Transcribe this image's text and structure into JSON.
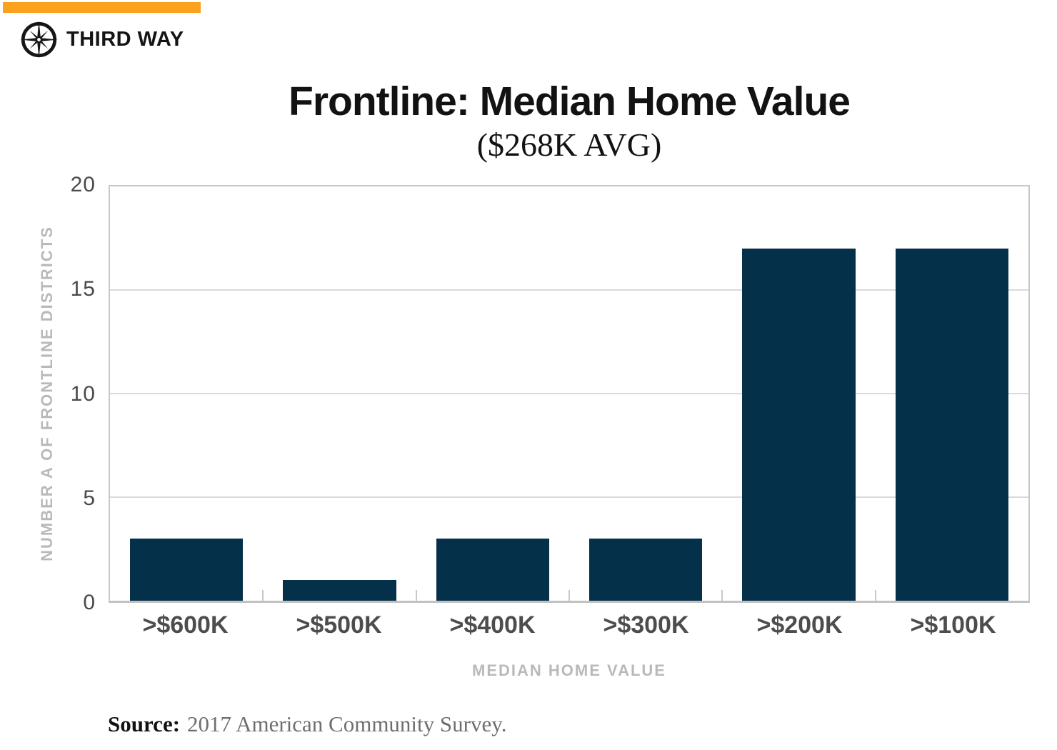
{
  "brand": {
    "name": "THIRD WAY",
    "logo_icon": "compass-icon",
    "accent_color": "#FAA21E",
    "logo_color": "#161616"
  },
  "header": {
    "title": "Frontline: Median Home Value",
    "subtitle": "($268K AVG)"
  },
  "chart_data": {
    "type": "bar",
    "title": "Frontline: Median Home Value",
    "subtitle": "($268K AVG)",
    "categories": [
      ">$600K",
      ">$500K",
      ">$400K",
      ">$300K",
      ">$200K",
      ">$100K"
    ],
    "values": [
      3,
      1,
      3,
      3,
      17,
      17
    ],
    "xlabel": "MEDIAN HOME VALUE",
    "ylabel": "NUMBER A OF FRONTLINE DISTRICTS",
    "ylim": [
      0,
      20
    ],
    "yticks": [
      0,
      5,
      10,
      15,
      20
    ],
    "grid": true,
    "legend": "none",
    "bar_color": "#04304A",
    "grid_color": "#DADADA"
  },
  "source": {
    "label": "Source:",
    "text": "2017 American Community Survey."
  }
}
